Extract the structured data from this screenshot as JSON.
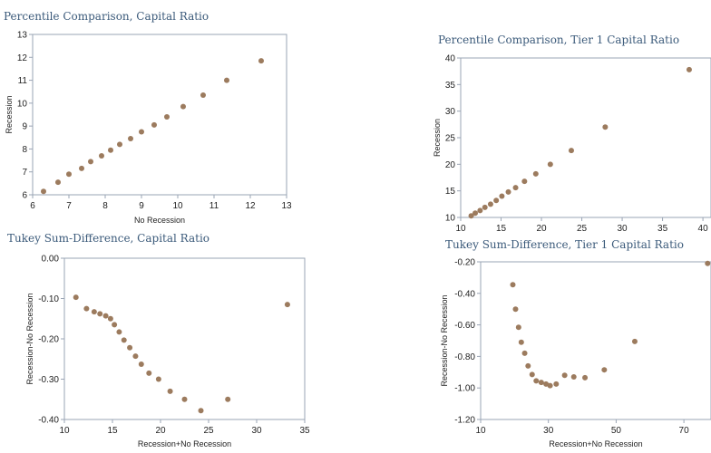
{
  "chart_data": [
    {
      "type": "scatter",
      "title": "Percentile Comparison, Capital Ratio",
      "xlabel": "No Recession",
      "ylabel": "Recession",
      "xlim": [
        6,
        13
      ],
      "ylim": [
        6,
        13
      ],
      "xticks": [
        6,
        7,
        8,
        9,
        10,
        11,
        12,
        13
      ],
      "yticks": [
        6,
        7,
        8,
        9,
        10,
        11,
        12,
        13
      ],
      "xtick_labels": [
        "6",
        "7",
        "8",
        "9",
        "10",
        "11",
        "12",
        "13"
      ],
      "ytick_labels": [
        "6",
        "7",
        "8",
        "9",
        "10",
        "11",
        "12",
        "13"
      ],
      "grid": false,
      "points": [
        [
          6.3,
          6.15
        ],
        [
          6.7,
          6.55
        ],
        [
          7.0,
          6.9
        ],
        [
          7.35,
          7.15
        ],
        [
          7.6,
          7.45
        ],
        [
          7.9,
          7.7
        ],
        [
          8.15,
          7.95
        ],
        [
          8.4,
          8.2
        ],
        [
          8.7,
          8.45
        ],
        [
          9.0,
          8.75
        ],
        [
          9.35,
          9.05
        ],
        [
          9.7,
          9.4
        ],
        [
          10.15,
          9.85
        ],
        [
          10.7,
          10.35
        ],
        [
          11.35,
          11.0
        ],
        [
          12.3,
          11.85
        ]
      ]
    },
    {
      "type": "scatter",
      "title": "Percentile Comparison, Tier 1 Capital Ratio",
      "xlabel": "",
      "ylabel": "Recession",
      "xlim": [
        10,
        41
      ],
      "ylim": [
        10,
        40
      ],
      "xticks": [
        10,
        15,
        20,
        25,
        30,
        35,
        40
      ],
      "yticks": [
        10,
        15,
        20,
        25,
        30,
        35,
        40
      ],
      "xtick_labels": [
        "10",
        "15",
        "20",
        "25",
        "30",
        "35",
        "40"
      ],
      "ytick_labels": [
        "10",
        "15",
        "20",
        "25",
        "30",
        "35",
        "40"
      ],
      "grid": false,
      "points": [
        [
          11.3,
          10.3
        ],
        [
          11.8,
          10.8
        ],
        [
          12.4,
          11.3
        ],
        [
          13.0,
          11.9
        ],
        [
          13.7,
          12.5
        ],
        [
          14.4,
          13.2
        ],
        [
          15.1,
          14.0
        ],
        [
          15.9,
          14.8
        ],
        [
          16.8,
          15.6
        ],
        [
          17.9,
          16.8
        ],
        [
          19.3,
          18.2
        ],
        [
          21.1,
          20.0
        ],
        [
          23.7,
          22.6
        ],
        [
          27.9,
          27.0
        ],
        [
          38.3,
          37.8
        ]
      ]
    },
    {
      "type": "scatter",
      "title": "Tukey Sum-Difference, Capital Ratio",
      "xlabel": "Recession+No Recession",
      "ylabel": "Recession-No Recession",
      "xlim": [
        10,
        35
      ],
      "ylim": [
        -0.4,
        0.0
      ],
      "xticks": [
        10,
        15,
        20,
        25,
        30,
        35
      ],
      "yticks": [
        0.0,
        -0.1,
        -0.2,
        -0.3,
        -0.4
      ],
      "xtick_labels": [
        "10",
        "15",
        "20",
        "25",
        "30",
        "35"
      ],
      "ytick_labels": [
        "0.00",
        "-0.10",
        "-0.20",
        "-0.30",
        "-0.40"
      ],
      "grid": false,
      "points": [
        [
          11.2,
          -0.097
        ],
        [
          12.3,
          -0.125
        ],
        [
          13.1,
          -0.133
        ],
        [
          13.7,
          -0.138
        ],
        [
          14.3,
          -0.143
        ],
        [
          14.8,
          -0.15
        ],
        [
          15.2,
          -0.165
        ],
        [
          15.7,
          -0.183
        ],
        [
          16.2,
          -0.203
        ],
        [
          16.8,
          -0.222
        ],
        [
          17.4,
          -0.243
        ],
        [
          18.0,
          -0.263
        ],
        [
          18.8,
          -0.285
        ],
        [
          19.8,
          -0.3
        ],
        [
          21.0,
          -0.33
        ],
        [
          22.5,
          -0.35
        ],
        [
          24.2,
          -0.378
        ],
        [
          27.0,
          -0.35
        ],
        [
          33.2,
          -0.115
        ]
      ]
    },
    {
      "type": "scatter",
      "title": "Tukey Sum-Difference, Tier 1 Capital Ratio",
      "xlabel": "Recession+No Recession",
      "ylabel": "Recession-No Recession",
      "xlim": [
        10,
        78
      ],
      "ylim": [
        -1.2,
        -0.2
      ],
      "xticks": [
        10,
        30,
        50,
        70
      ],
      "yticks": [
        -0.2,
        -0.4,
        -0.6,
        -0.8,
        -1.0,
        -1.2
      ],
      "xtick_labels": [
        "10",
        "30",
        "50",
        "70"
      ],
      "ytick_labels": [
        "-0.20",
        "-0.40",
        "-0.60",
        "-0.80",
        "-1.00",
        "-1.20"
      ],
      "grid": false,
      "points": [
        [
          19.5,
          -0.345
        ],
        [
          20.3,
          -0.5
        ],
        [
          21.2,
          -0.615
        ],
        [
          22.0,
          -0.71
        ],
        [
          23.0,
          -0.78
        ],
        [
          24.0,
          -0.86
        ],
        [
          25.2,
          -0.915
        ],
        [
          26.4,
          -0.955
        ],
        [
          27.9,
          -0.965
        ],
        [
          29.3,
          -0.975
        ],
        [
          30.5,
          -0.985
        ],
        [
          32.3,
          -0.975
        ],
        [
          34.8,
          -0.92
        ],
        [
          37.5,
          -0.93
        ],
        [
          40.8,
          -0.935
        ],
        [
          46.5,
          -0.885
        ],
        [
          55.5,
          -0.705
        ],
        [
          77.0,
          -0.21
        ]
      ]
    }
  ]
}
